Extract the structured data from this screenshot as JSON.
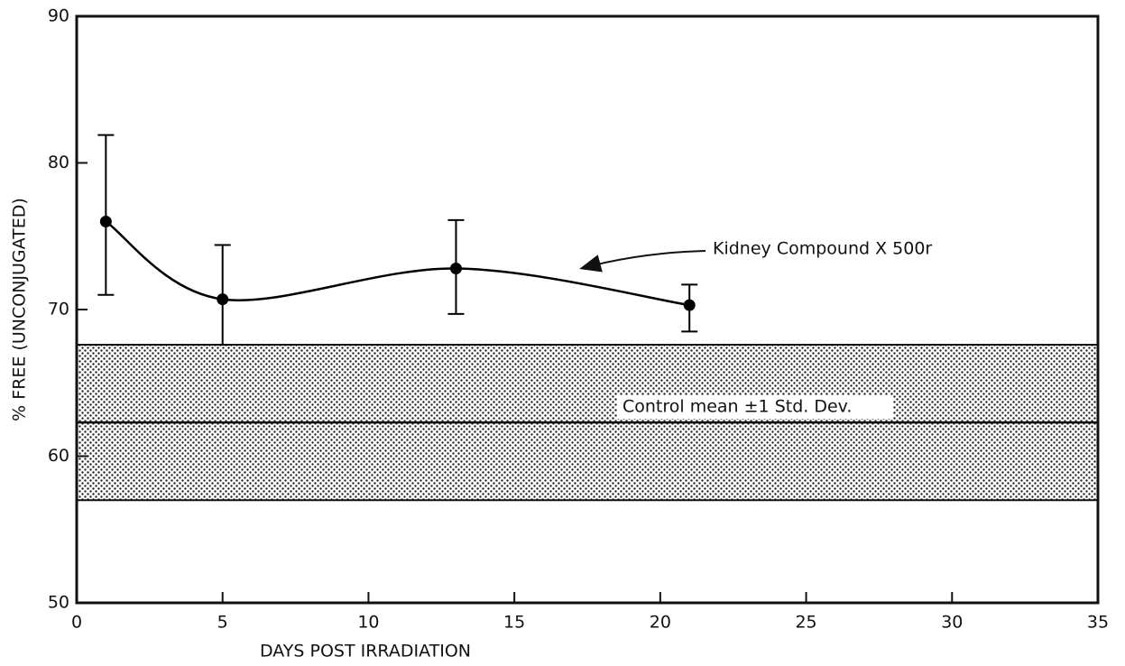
{
  "chart_data": {
    "type": "line",
    "xlabel": "DAYS POST IRRADIATION",
    "ylabel": "% FREE (UNCONJUGATED)",
    "x": [
      1,
      5,
      13,
      21
    ],
    "series": [
      {
        "name": "Kidney Compound X 500r",
        "color": "#000000",
        "values": [
          76.0,
          70.7,
          72.8,
          70.3
        ],
        "upper": [
          81.9,
          74.4,
          76.1,
          71.7
        ],
        "lower": [
          71.0,
          67.6,
          69.7,
          68.5
        ]
      }
    ],
    "control_band": {
      "label": "Control mean ±1 Std. Dev.",
      "mean": 62.3,
      "upper": 67.6,
      "lower": 57.0
    },
    "xlim": [
      0,
      35
    ],
    "xticks": [
      0,
      5,
      10,
      15,
      20,
      25,
      30,
      35
    ],
    "ylim": [
      50,
      90
    ],
    "yticks": [
      50,
      60,
      70,
      80,
      90
    ]
  }
}
